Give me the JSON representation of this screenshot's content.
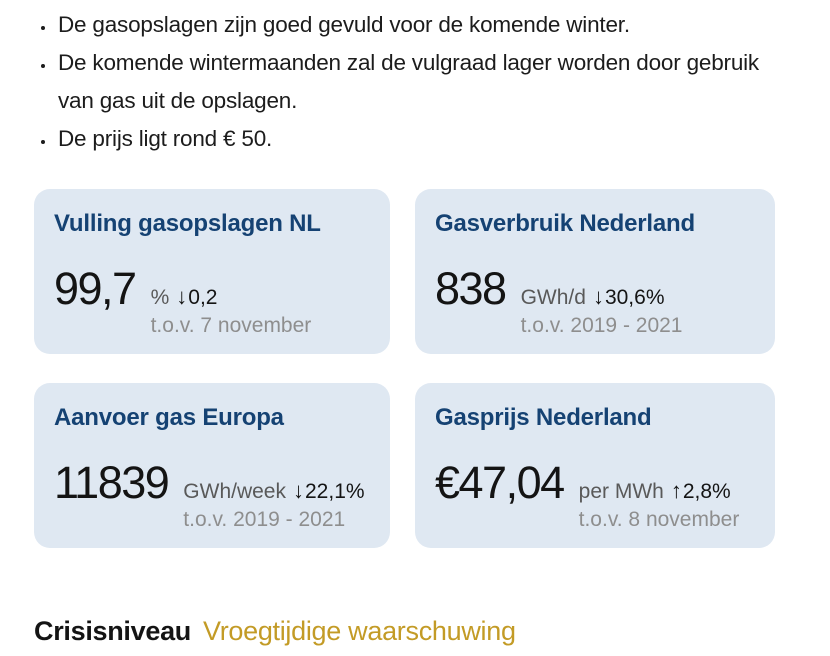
{
  "summary": {
    "bullets": [
      "De gasopslagen zijn goed gevuld voor de komende winter.",
      "De komende wintermaanden zal de vulgraad lager worden door gebruik van gas uit de opslagen.",
      "De prijs ligt rond € 50."
    ]
  },
  "cards": [
    {
      "title": "Vulling gasopslagen NL",
      "value": "99,7",
      "unit": "%",
      "arrow": "↓",
      "delta": "0,2",
      "compare": "t.o.v. 7 november"
    },
    {
      "title": "Gasverbruik Nederland",
      "value": "838",
      "unit": "GWh/d",
      "arrow": "↓",
      "delta": "30,6%",
      "compare": "t.o.v. 2019 - 2021"
    },
    {
      "title": "Aanvoer gas Europa",
      "value": "11839",
      "unit": "GWh/week",
      "arrow": "↓",
      "delta": "22,1%",
      "compare": "t.o.v. 2019 - 2021"
    },
    {
      "title": "Gasprijs Nederland",
      "value": "€47,04",
      "unit": "per MWh",
      "arrow": "↑",
      "delta": "2,8%",
      "compare": "t.o.v. 8 november"
    }
  ],
  "crisis": {
    "label": "Crisisniveau",
    "level": "Vroegtijdige waarschuwing"
  },
  "colors": {
    "title_blue": "#154273",
    "card_background": "#dfe8f2",
    "crisis_level_gold": "#c39b26",
    "unit_gray": "#595959",
    "muted_gray": "#8e8e8e"
  }
}
